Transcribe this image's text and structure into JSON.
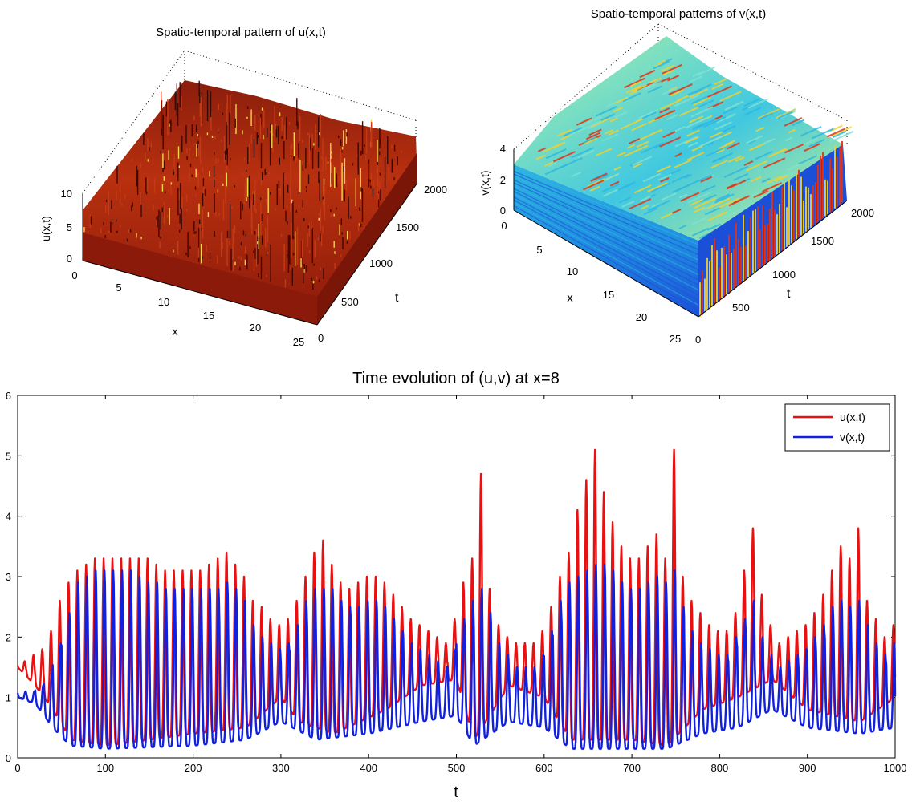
{
  "chart_data": [
    {
      "type": "surface",
      "title": "Spatio-temporal pattern of u(x,t)",
      "xlabel": "x",
      "ylabel": "t",
      "zlabel": "u(x,t)",
      "x_ticks": [
        "0",
        "5",
        "10",
        "15",
        "20",
        "25"
      ],
      "t_ticks": [
        "0",
        "500",
        "1000",
        "1500",
        "2000"
      ],
      "z_ticks": [
        "0",
        "5",
        "10"
      ],
      "xlim": [
        0,
        25
      ],
      "tlim": [
        0,
        2000
      ],
      "zlim": [
        0,
        12
      ],
      "colormap": "hot",
      "colors": {
        "base": "#8b1a0a",
        "mid": "#c43a14",
        "peak": "#f5d44a",
        "dark": "#3b0804"
      }
    },
    {
      "type": "surface",
      "title": "Spatio-temporal patterns of v(x,t)",
      "xlabel": "x",
      "ylabel": "t",
      "zlabel": "v(x,t)",
      "x_ticks": [
        "0",
        "5",
        "10",
        "15",
        "20",
        "25"
      ],
      "t_ticks": [
        "0",
        "500",
        "1000",
        "1500",
        "2000"
      ],
      "z_ticks": [
        "0",
        "2",
        "4"
      ],
      "xlim": [
        0,
        25
      ],
      "tlim": [
        0,
        2000
      ],
      "zlim": [
        0,
        4
      ],
      "colormap": "jet",
      "colors": {
        "low": "#1c4fd8",
        "mid": "#2fb7e0",
        "top": "#7fe0d0",
        "high": "#f0d030",
        "peak": "#e63010"
      }
    },
    {
      "type": "line",
      "title": "Time evolution of (u,v) at x=8",
      "xlabel": "t",
      "ylabel": "",
      "xlim": [
        0,
        1000
      ],
      "ylim": [
        0,
        6
      ],
      "x_ticks": [
        0,
        100,
        200,
        300,
        400,
        500,
        600,
        700,
        800,
        900,
        1000
      ],
      "y_ticks": [
        0,
        1,
        2,
        3,
        4,
        5,
        6
      ],
      "legend": "top-right",
      "series": [
        {
          "name": "u(x,t)",
          "color": "#e81010",
          "period": 10,
          "peak_samples": [
            [
              0,
              1.6
            ],
            [
              10,
              1.7
            ],
            [
              20,
              1.8
            ],
            [
              30,
              2.1
            ],
            [
              40,
              2.6
            ],
            [
              50,
              2.9
            ],
            [
              60,
              3.1
            ],
            [
              70,
              3.2
            ],
            [
              80,
              3.3
            ],
            [
              90,
              3.3
            ],
            [
              100,
              3.3
            ],
            [
              110,
              3.3
            ],
            [
              120,
              3.3
            ],
            [
              130,
              3.3
            ],
            [
              140,
              3.3
            ],
            [
              150,
              3.2
            ],
            [
              160,
              3.1
            ],
            [
              170,
              3.1
            ],
            [
              180,
              3.1
            ],
            [
              190,
              3.1
            ],
            [
              200,
              3.1
            ],
            [
              210,
              3.2
            ],
            [
              220,
              3.3
            ],
            [
              230,
              3.4
            ],
            [
              240,
              3.2
            ],
            [
              250,
              3.0
            ],
            [
              260,
              2.6
            ],
            [
              270,
              2.5
            ],
            [
              280,
              2.3
            ],
            [
              290,
              2.2
            ],
            [
              300,
              2.3
            ],
            [
              310,
              2.6
            ],
            [
              320,
              3.0
            ],
            [
              330,
              3.4
            ],
            [
              340,
              3.6
            ],
            [
              350,
              3.2
            ],
            [
              360,
              2.9
            ],
            [
              370,
              2.8
            ],
            [
              380,
              2.9
            ],
            [
              390,
              3.0
            ],
            [
              400,
              3.0
            ],
            [
              410,
              2.9
            ],
            [
              420,
              2.7
            ],
            [
              430,
              2.5
            ],
            [
              440,
              2.3
            ],
            [
              450,
              2.2
            ],
            [
              460,
              2.1
            ],
            [
              470,
              2.0
            ],
            [
              480,
              1.9
            ],
            [
              490,
              2.3
            ],
            [
              500,
              2.9
            ],
            [
              510,
              3.3
            ],
            [
              520,
              4.7
            ],
            [
              530,
              2.8
            ],
            [
              540,
              2.2
            ],
            [
              550,
              2.0
            ],
            [
              560,
              1.9
            ],
            [
              570,
              1.9
            ],
            [
              580,
              1.9
            ],
            [
              590,
              2.1
            ],
            [
              600,
              2.5
            ],
            [
              610,
              3.0
            ],
            [
              620,
              3.4
            ],
            [
              630,
              4.1
            ],
            [
              640,
              4.6
            ],
            [
              650,
              5.1
            ],
            [
              660,
              4.4
            ],
            [
              670,
              3.9
            ],
            [
              680,
              3.5
            ],
            [
              690,
              3.3
            ],
            [
              700,
              3.3
            ],
            [
              710,
              3.5
            ],
            [
              720,
              3.7
            ],
            [
              730,
              3.3
            ],
            [
              740,
              5.1
            ],
            [
              750,
              3.0
            ],
            [
              760,
              2.6
            ],
            [
              770,
              2.4
            ],
            [
              780,
              2.2
            ],
            [
              790,
              2.1
            ],
            [
              800,
              2.1
            ],
            [
              810,
              2.4
            ],
            [
              820,
              3.1
            ],
            [
              830,
              3.8
            ],
            [
              840,
              2.7
            ],
            [
              850,
              2.2
            ],
            [
              860,
              1.9
            ],
            [
              870,
              2.0
            ],
            [
              880,
              2.1
            ],
            [
              890,
              2.2
            ],
            [
              900,
              2.4
            ],
            [
              910,
              2.7
            ],
            [
              920,
              3.1
            ],
            [
              930,
              3.5
            ],
            [
              940,
              3.3
            ],
            [
              950,
              3.8
            ],
            [
              960,
              2.6
            ],
            [
              970,
              2.3
            ],
            [
              980,
              2.0
            ],
            [
              990,
              2.2
            ],
            [
              1000,
              2.2
            ]
          ],
          "trough_samples": [
            [
              0,
              1.5
            ],
            [
              20,
              1.2
            ],
            [
              40,
              0.8
            ],
            [
              60,
              0.3
            ],
            [
              100,
              0.2
            ],
            [
              200,
              0.4
            ],
            [
              260,
              0.5
            ],
            [
              300,
              1.0
            ],
            [
              320,
              0.6
            ],
            [
              360,
              0.4
            ],
            [
              420,
              0.8
            ],
            [
              460,
              1.2
            ],
            [
              500,
              1.3
            ],
            [
              520,
              0.3
            ],
            [
              560,
              1.2
            ],
            [
              600,
              1.0
            ],
            [
              630,
              0.3
            ],
            [
              700,
              0.3
            ],
            [
              740,
              0.2
            ],
            [
              780,
              0.8
            ],
            [
              820,
              1.0
            ],
            [
              860,
              1.3
            ],
            [
              900,
              0.8
            ],
            [
              960,
              0.6
            ],
            [
              1000,
              1.0
            ]
          ]
        },
        {
          "name": "v(x,t)",
          "color": "#1020e0",
          "period": 10,
          "peak_samples": [
            [
              0,
              1.1
            ],
            [
              10,
              1.1
            ],
            [
              20,
              1.2
            ],
            [
              30,
              1.4
            ],
            [
              40,
              1.9
            ],
            [
              50,
              2.4
            ],
            [
              60,
              2.9
            ],
            [
              70,
              3.0
            ],
            [
              80,
              3.1
            ],
            [
              90,
              3.1
            ],
            [
              100,
              3.1
            ],
            [
              110,
              3.1
            ],
            [
              120,
              3.1
            ],
            [
              130,
              3.0
            ],
            [
              140,
              2.9
            ],
            [
              150,
              2.9
            ],
            [
              160,
              2.8
            ],
            [
              170,
              2.8
            ],
            [
              180,
              2.8
            ],
            [
              190,
              2.8
            ],
            [
              200,
              2.8
            ],
            [
              210,
              2.8
            ],
            [
              220,
              2.8
            ],
            [
              230,
              2.9
            ],
            [
              240,
              2.8
            ],
            [
              250,
              2.6
            ],
            [
              260,
              2.2
            ],
            [
              270,
              2.0
            ],
            [
              280,
              1.9
            ],
            [
              290,
              1.8
            ],
            [
              300,
              1.9
            ],
            [
              310,
              2.2
            ],
            [
              320,
              2.6
            ],
            [
              330,
              2.8
            ],
            [
              340,
              2.8
            ],
            [
              350,
              2.8
            ],
            [
              360,
              2.6
            ],
            [
              370,
              2.5
            ],
            [
              380,
              2.5
            ],
            [
              390,
              2.6
            ],
            [
              400,
              2.6
            ],
            [
              410,
              2.5
            ],
            [
              420,
              2.3
            ],
            [
              430,
              2.1
            ],
            [
              440,
              1.9
            ],
            [
              450,
              1.8
            ],
            [
              460,
              1.7
            ],
            [
              470,
              1.6
            ],
            [
              480,
              1.5
            ],
            [
              490,
              1.8
            ],
            [
              500,
              2.3
            ],
            [
              510,
              2.6
            ],
            [
              520,
              2.8
            ],
            [
              530,
              2.4
            ],
            [
              540,
              1.9
            ],
            [
              550,
              1.7
            ],
            [
              560,
              1.5
            ],
            [
              570,
              1.5
            ],
            [
              580,
              1.5
            ],
            [
              590,
              1.7
            ],
            [
              600,
              2.1
            ],
            [
              610,
              2.6
            ],
            [
              620,
              2.9
            ],
            [
              630,
              3.0
            ],
            [
              640,
              3.1
            ],
            [
              650,
              3.2
            ],
            [
              660,
              3.2
            ],
            [
              670,
              3.1
            ],
            [
              680,
              2.9
            ],
            [
              690,
              2.8
            ],
            [
              700,
              2.8
            ],
            [
              710,
              2.9
            ],
            [
              720,
              3.0
            ],
            [
              730,
              2.9
            ],
            [
              740,
              3.1
            ],
            [
              750,
              2.5
            ],
            [
              760,
              2.1
            ],
            [
              770,
              1.9
            ],
            [
              780,
              1.8
            ],
            [
              790,
              1.7
            ],
            [
              800,
              1.7
            ],
            [
              810,
              2.0
            ],
            [
              820,
              2.3
            ],
            [
              830,
              2.6
            ],
            [
              840,
              2.0
            ],
            [
              850,
              1.7
            ],
            [
              860,
              1.5
            ],
            [
              870,
              1.6
            ],
            [
              880,
              1.7
            ],
            [
              890,
              1.8
            ],
            [
              900,
              2.0
            ],
            [
              910,
              2.2
            ],
            [
              920,
              2.5
            ],
            [
              930,
              2.6
            ],
            [
              940,
              2.5
            ],
            [
              950,
              2.6
            ],
            [
              960,
              2.2
            ],
            [
              970,
              1.9
            ],
            [
              980,
              1.7
            ],
            [
              990,
              1.9
            ],
            [
              1000,
              1.2
            ]
          ],
          "trough_samples": [
            [
              0,
              1.0
            ],
            [
              20,
              0.9
            ],
            [
              40,
              0.5
            ],
            [
              60,
              0.2
            ],
            [
              100,
              0.15
            ],
            [
              200,
              0.2
            ],
            [
              260,
              0.3
            ],
            [
              300,
              0.6
            ],
            [
              340,
              0.3
            ],
            [
              400,
              0.4
            ],
            [
              460,
              0.6
            ],
            [
              500,
              0.7
            ],
            [
              520,
              0.2
            ],
            [
              560,
              0.6
            ],
            [
              600,
              0.5
            ],
            [
              630,
              0.15
            ],
            [
              700,
              0.15
            ],
            [
              740,
              0.15
            ],
            [
              780,
              0.4
            ],
            [
              820,
              0.5
            ],
            [
              860,
              0.8
            ],
            [
              900,
              0.5
            ],
            [
              960,
              0.4
            ],
            [
              1000,
              0.5
            ]
          ]
        }
      ]
    }
  ]
}
